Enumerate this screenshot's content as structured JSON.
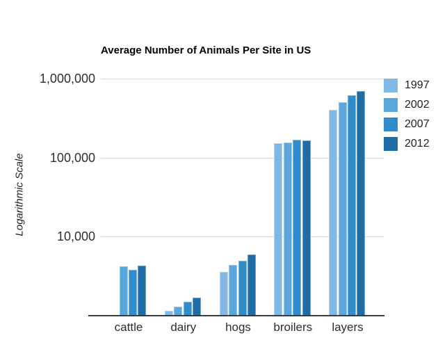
{
  "chart_data": {
    "type": "bar",
    "title": "Average Number of Animals Per Site in US",
    "xlabel": "",
    "ylabel": "Logarithmic Scale",
    "y_scale": "log",
    "ylim": [
      1000,
      1000000
    ],
    "grid": true,
    "legend_position": "right",
    "y_ticks": [
      {
        "label": "1,000,000",
        "value": 1000000
      },
      {
        "label": "100,000",
        "value": 100000
      },
      {
        "label": "10,000",
        "value": 10000
      }
    ],
    "categories": [
      "cattle",
      "dairy",
      "hogs",
      "broilers",
      "layers"
    ],
    "series": [
      {
        "name": "1997",
        "color": "#82b9e4",
        "values": [
          null,
          1150,
          3550,
          152000,
          400000
        ]
      },
      {
        "name": "2002",
        "color": "#5aa7de",
        "values": [
          4200,
          1300,
          4350,
          154000,
          505000
        ]
      },
      {
        "name": "2007",
        "color": "#318ccc",
        "values": [
          3800,
          1500,
          4950,
          168000,
          620000
        ]
      },
      {
        "name": "2012",
        "color": "#1f6ca6",
        "values": [
          4300,
          1700,
          5900,
          165000,
          695000
        ]
      }
    ]
  }
}
